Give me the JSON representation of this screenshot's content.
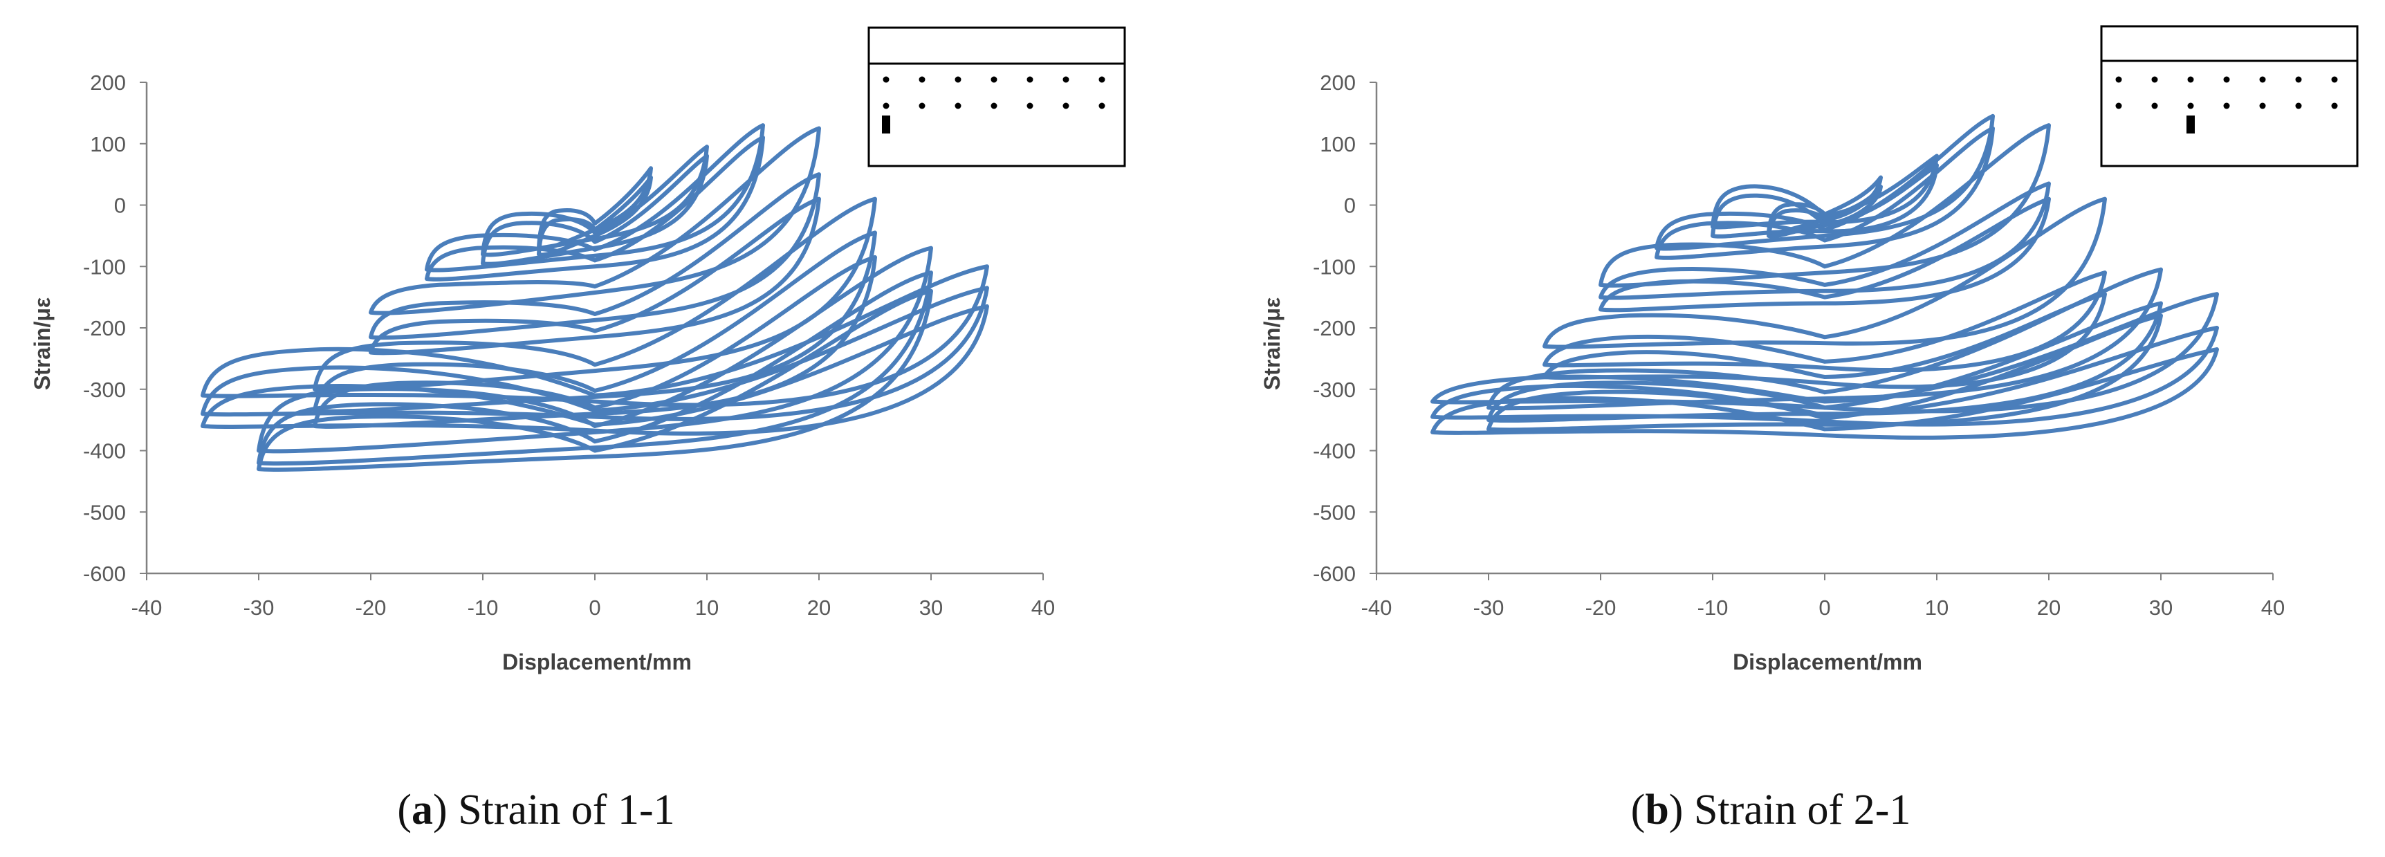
{
  "figure": {
    "panels": [
      {
        "id": "a",
        "caption": {
          "open": "(",
          "letter": "a",
          "close": ")",
          "text": " Strain of 1-1"
        },
        "inset": {
          "gauge_row": 2,
          "gauge_column": 1,
          "dot_columns": 7,
          "dot_rows": 2
        }
      },
      {
        "id": "b",
        "caption": {
          "open": "(",
          "letter": "b",
          "close": ")",
          "text": " Strain of 2-1"
        },
        "inset": {
          "gauge_row": 2,
          "gauge_column": 3,
          "dot_columns": 7,
          "dot_rows": 2
        }
      }
    ]
  },
  "chart_data": [
    {
      "type": "line",
      "title": "",
      "xlabel": "Displacement/mm",
      "ylabel": "Strain/με",
      "xlim": [
        -40,
        40
      ],
      "ylim": [
        -600,
        200
      ],
      "xticks": [
        -40,
        -30,
        -20,
        -10,
        0,
        10,
        20,
        30,
        40
      ],
      "yticks": [
        -600,
        -500,
        -400,
        -300,
        -200,
        -100,
        0,
        100,
        200
      ],
      "grid": false,
      "legend": "none",
      "line_color": "#4a7ebb",
      "series": [
        {
          "loops": [
            {
              "amplitude": 5,
              "top_pos": 60,
              "top_neg": -15,
              "bot_neg": -70,
              "bot_pos": -10
            },
            {
              "amplitude": 5,
              "top_pos": 45,
              "top_neg": -30,
              "bot_neg": -80,
              "bot_pos": -20
            },
            {
              "amplitude": 10,
              "top_pos": 95,
              "top_neg": -20,
              "bot_neg": -80,
              "bot_pos": -30
            },
            {
              "amplitude": 10,
              "top_pos": 80,
              "top_neg": -35,
              "bot_neg": -95,
              "bot_pos": -45
            },
            {
              "amplitude": 15,
              "top_pos": 130,
              "top_neg": -55,
              "bot_neg": -105,
              "bot_pos": -60
            },
            {
              "amplitude": 15,
              "top_pos": 110,
              "top_neg": -75,
              "bot_neg": -120,
              "bot_pos": -80
            },
            {
              "amplitude": 20,
              "top_pos": 125,
              "top_neg": -135,
              "bot_neg": -175,
              "bot_pos": -110
            },
            {
              "amplitude": 20,
              "top_pos": 50,
              "top_neg": -165,
              "bot_neg": -215,
              "bot_pos": -160
            },
            {
              "amplitude": 20,
              "top_pos": 10,
              "top_neg": -195,
              "bot_neg": -240,
              "bot_pos": -190
            },
            {
              "amplitude": 25,
              "top_pos": 10,
              "top_neg": -230,
              "bot_neg": -300,
              "bot_pos": -240
            },
            {
              "amplitude": 25,
              "top_pos": -45,
              "top_neg": -265,
              "bot_neg": -335,
              "bot_pos": -290
            },
            {
              "amplitude": 25,
              "top_pos": -85,
              "top_neg": -295,
              "bot_neg": -360,
              "bot_pos": -320
            },
            {
              "amplitude": 30,
              "top_pos": -70,
              "top_neg": -305,
              "bot_neg": -400,
              "bot_pos": -340
            },
            {
              "amplitude": 30,
              "top_pos": -110,
              "top_neg": -330,
              "bot_neg": -420,
              "bot_pos": -370
            },
            {
              "amplitude": 30,
              "top_pos": -140,
              "top_neg": -350,
              "bot_neg": -430,
              "bot_pos": -390
            },
            {
              "amplitude": 35,
              "top_pos": -100,
              "top_neg": -240,
              "bot_neg": -310,
              "bot_pos": -330
            },
            {
              "amplitude": 35,
              "top_pos": -135,
              "top_neg": -270,
              "bot_neg": -340,
              "bot_pos": -350
            },
            {
              "amplitude": 35,
              "top_pos": -165,
              "top_neg": -300,
              "bot_neg": -360,
              "bot_pos": -375
            }
          ]
        }
      ]
    },
    {
      "type": "line",
      "title": "",
      "xlabel": "Displacement/mm",
      "ylabel": "Strain/με",
      "xlim": [
        -40,
        40
      ],
      "ylim": [
        -600,
        200
      ],
      "xticks": [
        -40,
        -30,
        -20,
        -10,
        0,
        10,
        20,
        30,
        40
      ],
      "yticks": [
        -600,
        -500,
        -400,
        -300,
        -200,
        -100,
        0,
        100,
        200
      ],
      "grid": false,
      "legend": "none",
      "line_color": "#4a7ebb",
      "series": [
        {
          "loops": [
            {
              "amplitude": 5,
              "top_pos": 45,
              "top_neg": -5,
              "bot_neg": -45,
              "bot_pos": -5
            },
            {
              "amplitude": 5,
              "top_pos": 30,
              "top_neg": -15,
              "bot_neg": -50,
              "bot_pos": -15
            },
            {
              "amplitude": 10,
              "top_pos": 80,
              "top_neg": 25,
              "bot_neg": -35,
              "bot_pos": -20
            },
            {
              "amplitude": 10,
              "top_pos": 65,
              "top_neg": 10,
              "bot_neg": -50,
              "bot_pos": -35
            },
            {
              "amplitude": 15,
              "top_pos": 145,
              "top_neg": -20,
              "bot_neg": -70,
              "bot_pos": -30
            },
            {
              "amplitude": 15,
              "top_pos": 125,
              "top_neg": -35,
              "bot_neg": -85,
              "bot_pos": -50
            },
            {
              "amplitude": 20,
              "top_pos": 130,
              "top_neg": -70,
              "bot_neg": -130,
              "bot_pos": -90
            },
            {
              "amplitude": 20,
              "top_pos": 35,
              "top_neg": -110,
              "bot_neg": -150,
              "bot_pos": -130
            },
            {
              "amplitude": 20,
              "top_pos": 10,
              "top_neg": -130,
              "bot_neg": -170,
              "bot_pos": -150
            },
            {
              "amplitude": 25,
              "top_pos": 10,
              "top_neg": -185,
              "bot_neg": -230,
              "bot_pos": -220
            },
            {
              "amplitude": 25,
              "top_pos": -110,
              "top_neg": -220,
              "bot_neg": -260,
              "bot_pos": -270
            },
            {
              "amplitude": 25,
              "top_pos": -145,
              "top_neg": -245,
              "bot_neg": -280,
              "bot_pos": -300
            },
            {
              "amplitude": 30,
              "top_pos": -105,
              "top_neg": -275,
              "bot_neg": -330,
              "bot_pos": -300
            },
            {
              "amplitude": 30,
              "top_pos": -160,
              "top_neg": -295,
              "bot_neg": -350,
              "bot_pos": -330
            },
            {
              "amplitude": 30,
              "top_pos": -180,
              "top_neg": -310,
              "bot_neg": -365,
              "bot_pos": -350
            },
            {
              "amplitude": 35,
              "top_pos": -145,
              "top_neg": -285,
              "bot_neg": -320,
              "bot_pos": -340
            },
            {
              "amplitude": 35,
              "top_pos": -200,
              "top_neg": -300,
              "bot_neg": -345,
              "bot_pos": -360
            },
            {
              "amplitude": 35,
              "top_pos": -235,
              "top_neg": -320,
              "bot_neg": -370,
              "bot_pos": -380
            }
          ]
        }
      ]
    }
  ]
}
